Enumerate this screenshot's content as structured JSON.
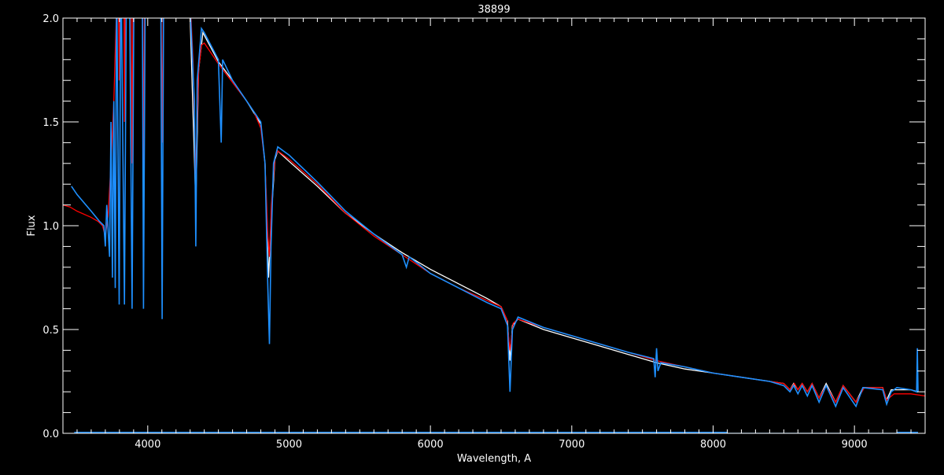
{
  "chart_data": {
    "type": "line",
    "title": "38899",
    "xlabel": "Wavelength, A",
    "ylabel": "Flux",
    "xlim": [
      3400,
      9500
    ],
    "ylim": [
      0,
      2.0
    ],
    "xticks": [
      4000,
      5000,
      6000,
      7000,
      8000,
      9000
    ],
    "xtick_labels": [
      "4000",
      "5000",
      "6000",
      "7000",
      "8000",
      "9000"
    ],
    "yticks": [
      0,
      0.5,
      1.0,
      1.5,
      2.0
    ],
    "ytick_labels": [
      "0.0",
      "0.5",
      "1.0",
      "1.5",
      "2.0"
    ],
    "x_minor_step": 100,
    "y_minor_step": 0.1,
    "grid": false,
    "background": "#000000",
    "axis_color": "#ffffff",
    "series": [
      {
        "color": "#ffffff",
        "x": [
          4300,
          4340,
          4360,
          4390,
          4500,
          4600,
          4700,
          4800,
          4830,
          4855,
          4875,
          4900,
          4920,
          5000,
          5200,
          5400,
          5600,
          5800,
          6000,
          6200,
          6400,
          6500,
          6545,
          6563,
          6580,
          6620,
          6800,
          7000,
          7200,
          7400,
          7600,
          7800,
          8000,
          8200,
          8400,
          8500,
          8544,
          8570,
          8600,
          8630,
          8667,
          8700,
          8750,
          8800,
          8867,
          8920,
          9011,
          9060,
          9200,
          9228,
          9260,
          9400,
          9450
        ],
        "y": [
          2.0,
          1.1,
          1.75,
          1.93,
          1.79,
          1.7,
          1.6,
          1.49,
          1.3,
          0.75,
          1.05,
          1.32,
          1.36,
          1.31,
          1.19,
          1.06,
          0.96,
          0.87,
          0.79,
          0.72,
          0.65,
          0.61,
          0.54,
          0.35,
          0.52,
          0.55,
          0.5,
          0.46,
          0.42,
          0.38,
          0.34,
          0.31,
          0.29,
          0.27,
          0.25,
          0.24,
          0.21,
          0.24,
          0.21,
          0.24,
          0.2,
          0.24,
          0.17,
          0.24,
          0.15,
          0.23,
          0.15,
          0.22,
          0.22,
          0.16,
          0.21,
          0.21,
          0.2
        ]
      },
      {
        "color": "#ff0000",
        "x": [
          3400,
          3450,
          3500,
          3600,
          3650,
          3680,
          3700,
          3720,
          3740,
          3760,
          3790,
          3798,
          3806,
          3830,
          3835,
          3842,
          3880,
          3889,
          3898,
          3960,
          3970,
          3980,
          4090,
          4102,
          4114,
          4300,
          4320,
          4340,
          4360,
          4380,
          4400,
          4500,
          4600,
          4700,
          4750,
          4800,
          4830,
          4850,
          4861,
          4875,
          4900,
          4920,
          5000,
          5200,
          5400,
          5600,
          5800,
          6000,
          6200,
          6400,
          6500,
          6540,
          6563,
          6585,
          6620,
          6800,
          7000,
          7200,
          7400,
          7600,
          7800,
          8000,
          8200,
          8400,
          8500,
          8544,
          8575,
          8600,
          8630,
          8667,
          8700,
          8750,
          8800,
          8867,
          8920,
          9011,
          9070,
          9200,
          9228,
          9280,
          9400,
          9500
        ],
        "y": [
          1.1,
          1.09,
          1.07,
          1.04,
          1.02,
          1.0,
          0.95,
          1.05,
          1.3,
          1.6,
          2.3,
          1.7,
          2.3,
          2.3,
          1.5,
          2.3,
          2.4,
          1.3,
          2.4,
          2.5,
          1.25,
          2.5,
          2.5,
          1.4,
          2.5,
          2.1,
          1.8,
          1.25,
          1.75,
          1.87,
          1.88,
          1.78,
          1.69,
          1.6,
          1.55,
          1.47,
          1.3,
          0.95,
          0.85,
          1.1,
          1.33,
          1.36,
          1.32,
          1.2,
          1.06,
          0.95,
          0.86,
          0.77,
          0.7,
          0.64,
          0.61,
          0.55,
          0.4,
          0.53,
          0.55,
          0.51,
          0.47,
          0.43,
          0.39,
          0.35,
          0.32,
          0.29,
          0.27,
          0.25,
          0.24,
          0.21,
          0.24,
          0.21,
          0.24,
          0.2,
          0.24,
          0.17,
          0.23,
          0.15,
          0.23,
          0.15,
          0.22,
          0.22,
          0.16,
          0.19,
          0.19,
          0.18
        ]
      },
      {
        "color": "#1e90ff",
        "x": [
          3460,
          3500,
          3600,
          3660,
          3690,
          3700,
          3710,
          3730,
          3740,
          3750,
          3760,
          3770,
          3780,
          3798,
          3810,
          3835,
          3850,
          3870,
          3889,
          3905,
          3960,
          3970,
          3985,
          4090,
          4102,
          4115,
          4300,
          4330,
          4340,
          4350,
          4380,
          4400,
          4500,
          4520,
          4530,
          4600,
          4700,
          4800,
          4830,
          4850,
          4861,
          4872,
          4890,
          4920,
          5000,
          5200,
          5400,
          5600,
          5800,
          5830,
          5850,
          6000,
          6200,
          6400,
          6500,
          6545,
          6563,
          6580,
          6620,
          6800,
          7000,
          7200,
          7400,
          7580,
          7590,
          7600,
          7610,
          7630,
          7800,
          8000,
          8200,
          8400,
          8500,
          8544,
          8570,
          8600,
          8630,
          8667,
          8700,
          8750,
          8800,
          8867,
          8920,
          9011,
          9060,
          9200,
          9228,
          9260,
          9300,
          9400,
          9440,
          9445,
          9450
        ],
        "y": [
          1.19,
          1.15,
          1.07,
          1.02,
          1.0,
          0.9,
          1.1,
          0.85,
          1.5,
          0.75,
          1.6,
          0.7,
          2.2,
          0.62,
          2.3,
          0.62,
          2.3,
          2.3,
          0.6,
          2.4,
          2.5,
          0.6,
          2.5,
          2.5,
          0.55,
          2.5,
          2.05,
          1.6,
          0.9,
          1.7,
          1.95,
          1.93,
          1.8,
          1.4,
          1.8,
          1.7,
          1.6,
          1.5,
          1.3,
          0.7,
          0.43,
          0.9,
          1.3,
          1.38,
          1.34,
          1.21,
          1.07,
          0.96,
          0.86,
          0.8,
          0.85,
          0.77,
          0.7,
          0.63,
          0.6,
          0.52,
          0.2,
          0.5,
          0.56,
          0.51,
          0.47,
          0.43,
          0.39,
          0.36,
          0.27,
          0.41,
          0.3,
          0.34,
          0.32,
          0.29,
          0.27,
          0.25,
          0.23,
          0.2,
          0.23,
          0.19,
          0.23,
          0.18,
          0.23,
          0.15,
          0.23,
          0.13,
          0.22,
          0.13,
          0.22,
          0.21,
          0.14,
          0.2,
          0.22,
          0.21,
          0.2,
          0.41,
          0.2
        ]
      },
      {
        "color": "#1e90ff",
        "x": [
          3480,
          8100,
          8101,
          9300,
          9301,
          9450
        ],
        "y": [
          0.005,
          0.005,
          0.0,
          0.0,
          0.005,
          0.005
        ]
      }
    ]
  }
}
